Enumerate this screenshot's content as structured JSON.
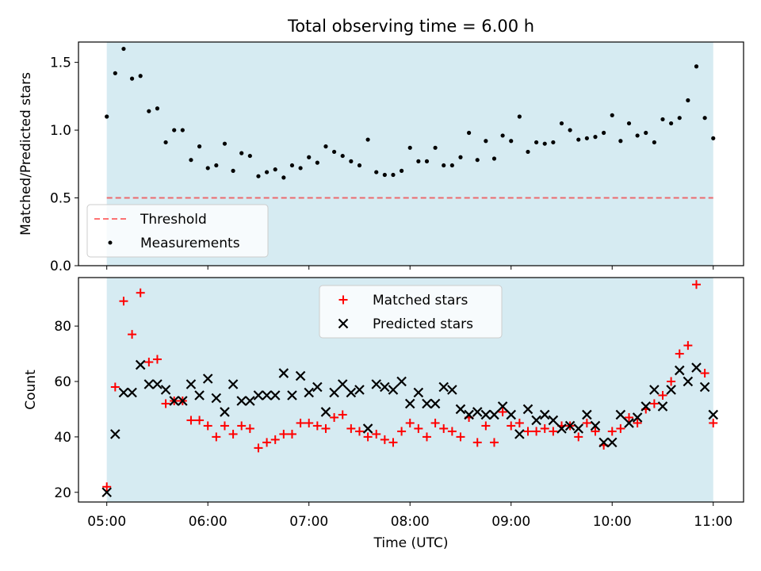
{
  "title": "Total observing time = 6.00 h",
  "colors": {
    "shade": "#add8e6",
    "threshold": "#ff0000",
    "measurement": "#000000",
    "matched": "#ff0000",
    "predicted": "#000000"
  },
  "chart_data": [
    {
      "type": "scatter",
      "ylabel": "Matched/Predicted stars",
      "ylim": [
        0.0,
        1.65
      ],
      "yticks": [
        "0.0",
        "0.5",
        "1.0",
        "1.5"
      ],
      "xlim_hours": [
        4.72,
        11.3
      ],
      "shaded_range_hours": [
        5.0,
        11.0
      ],
      "legend": [
        "Threshold",
        "Measurements"
      ],
      "legend_position": "lower-left",
      "threshold": 0.5,
      "series": [
        {
          "name": "Measurements",
          "x_hours": [
            5.0,
            5.0833,
            5.1667,
            5.25,
            5.3333,
            5.4167,
            5.5,
            5.5833,
            5.6667,
            5.75,
            5.8333,
            5.9167,
            6.0,
            6.0833,
            6.1667,
            6.25,
            6.3333,
            6.4167,
            6.5,
            6.5833,
            6.6667,
            6.75,
            6.8333,
            6.9167,
            7.0,
            7.0833,
            7.1667,
            7.25,
            7.3333,
            7.4167,
            7.5,
            7.5833,
            7.6667,
            7.75,
            7.8333,
            7.9167,
            8.0,
            8.0833,
            8.1667,
            8.25,
            8.3333,
            8.4167,
            8.5,
            8.5833,
            8.6667,
            8.75,
            8.8333,
            8.9167,
            9.0,
            9.0833,
            9.1667,
            9.25,
            9.3333,
            9.4167,
            9.5,
            9.5833,
            9.6667,
            9.75,
            9.8333,
            9.9167,
            10.0,
            10.0833,
            10.1667,
            10.25,
            10.3333,
            10.4167,
            10.5,
            10.5833,
            10.6667,
            10.75,
            10.8333,
            10.9167,
            11.0
          ],
          "values": [
            1.1,
            1.42,
            1.6,
            1.38,
            1.4,
            1.14,
            1.16,
            0.91,
            1.0,
            1.0,
            0.78,
            0.88,
            0.72,
            0.74,
            0.9,
            0.7,
            0.83,
            0.81,
            0.66,
            0.69,
            0.71,
            0.65,
            0.74,
            0.72,
            0.8,
            0.76,
            0.88,
            0.84,
            0.81,
            0.77,
            0.74,
            0.93,
            0.69,
            0.67,
            0.67,
            0.7,
            0.87,
            0.77,
            0.77,
            0.87,
            0.74,
            0.74,
            0.8,
            0.98,
            0.78,
            0.92,
            0.79,
            0.96,
            0.92,
            1.1,
            0.84,
            0.91,
            0.9,
            0.91,
            1.05,
            1.0,
            0.93,
            0.94,
            0.95,
            0.98,
            1.11,
            0.92,
            1.05,
            0.96,
            0.98,
            0.91,
            1.08,
            1.05,
            1.09,
            1.22,
            1.47,
            1.09,
            0.94
          ]
        }
      ]
    },
    {
      "type": "scatter",
      "ylabel": "Count",
      "xlabel": "Time (UTC)",
      "ylim": [
        16.5,
        97.5
      ],
      "yticks": [
        "20",
        "40",
        "60",
        "80"
      ],
      "xticks": [
        "05:00",
        "06:00",
        "07:00",
        "08:00",
        "09:00",
        "10:00",
        "11:00"
      ],
      "xlim_hours": [
        4.72,
        11.3
      ],
      "shaded_range_hours": [
        5.0,
        11.0
      ],
      "legend": [
        "Matched stars",
        "Predicted stars"
      ],
      "legend_position": "upper-center",
      "x_hours": [
        5.0,
        5.0833,
        5.1667,
        5.25,
        5.3333,
        5.4167,
        5.5,
        5.5833,
        5.6667,
        5.75,
        5.8333,
        5.9167,
        6.0,
        6.0833,
        6.1667,
        6.25,
        6.3333,
        6.4167,
        6.5,
        6.5833,
        6.6667,
        6.75,
        6.8333,
        6.9167,
        7.0,
        7.0833,
        7.1667,
        7.25,
        7.3333,
        7.4167,
        7.5,
        7.5833,
        7.6667,
        7.75,
        7.8333,
        7.9167,
        8.0,
        8.0833,
        8.1667,
        8.25,
        8.3333,
        8.4167,
        8.5,
        8.5833,
        8.6667,
        8.75,
        8.8333,
        8.9167,
        9.0,
        9.0833,
        9.1667,
        9.25,
        9.3333,
        9.4167,
        9.5,
        9.5833,
        9.6667,
        9.75,
        9.8333,
        9.9167,
        10.0,
        10.0833,
        10.1667,
        10.25,
        10.3333,
        10.4167,
        10.5,
        10.5833,
        10.6667,
        10.75,
        10.8333,
        10.9167,
        11.0
      ],
      "series": [
        {
          "name": "Matched stars",
          "values": [
            22,
            58,
            89,
            77,
            92,
            67,
            68,
            52,
            53,
            53,
            46,
            46,
            44,
            40,
            44,
            41,
            44,
            43,
            36,
            38,
            39,
            41,
            41,
            45,
            45,
            44,
            43,
            47,
            48,
            43,
            42,
            40,
            41,
            39,
            38,
            42,
            45,
            43,
            40,
            45,
            43,
            42,
            40,
            47,
            38,
            44,
            38,
            49,
            44,
            45,
            42,
            42,
            43,
            42,
            44,
            44,
            40,
            45,
            42,
            37,
            42,
            43,
            47,
            45,
            50,
            52,
            55,
            60,
            70,
            73,
            95,
            63,
            45
          ]
        },
        {
          "name": "Predicted stars",
          "values": [
            20,
            41,
            56,
            56,
            66,
            59,
            59,
            57,
            53,
            53,
            59,
            55,
            61,
            54,
            49,
            59,
            53,
            53,
            55,
            55,
            55,
            63,
            55,
            62,
            56,
            58,
            49,
            56,
            59,
            56,
            57,
            43,
            59,
            58,
            57,
            60,
            52,
            56,
            52,
            52,
            58,
            57,
            50,
            48,
            49,
            48,
            48,
            51,
            48,
            41,
            50,
            46,
            48,
            46,
            43,
            44,
            43,
            48,
            44,
            38,
            38,
            48,
            45,
            47,
            51,
            57,
            51,
            57,
            64,
            60,
            65,
            58,
            48
          ]
        }
      ]
    }
  ]
}
